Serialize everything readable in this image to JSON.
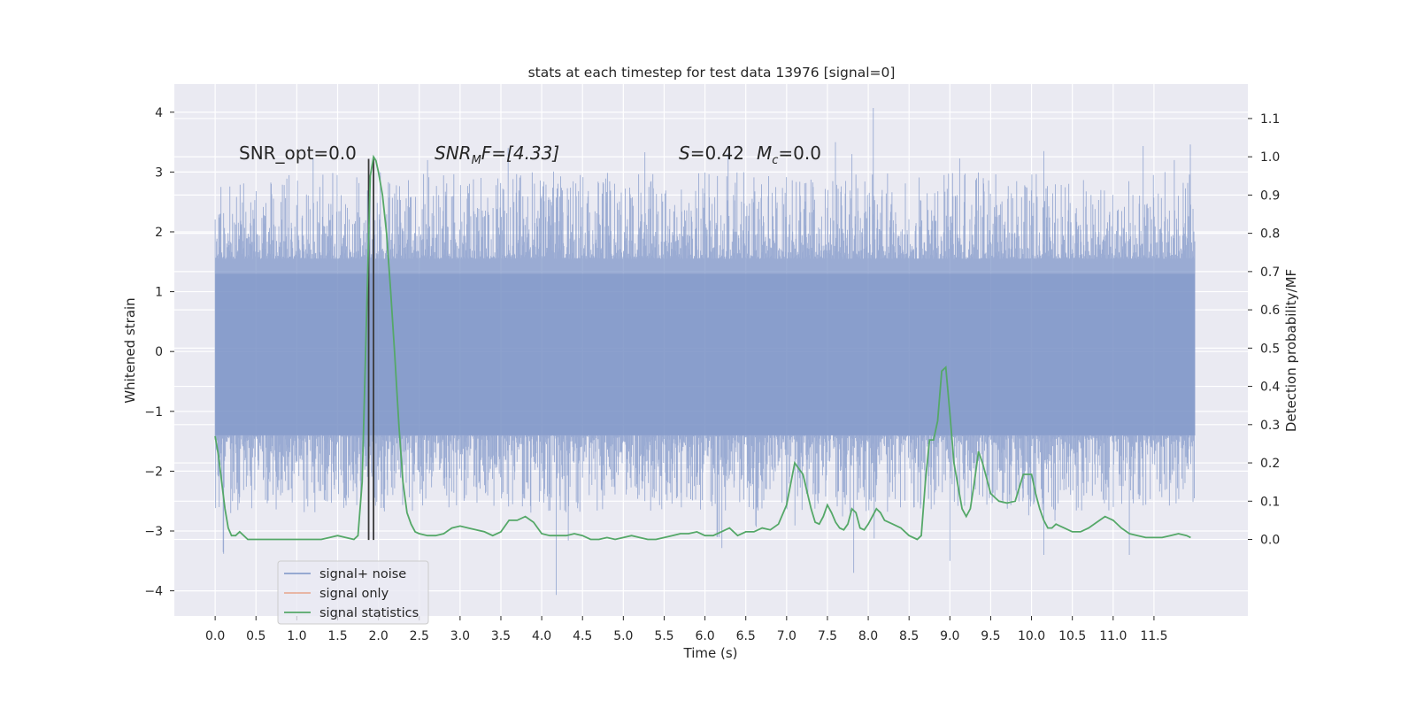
{
  "chart_data": {
    "type": "line",
    "title": "stats at each timestep for test data 13976 [signal=0]",
    "xlabel": "Time (s)",
    "ylabel_left": "Whitened strain",
    "ylabel_right": "Detection probability/MF",
    "xlim": [
      -0.5,
      12.65
    ],
    "ylim_left": [
      -4.42,
      4.47
    ],
    "ylim_right": [
      -0.2,
      1.19
    ],
    "x_ticks": [
      "0.0",
      "0.5",
      "1.0",
      "1.5",
      "2.0",
      "2.5",
      "3.0",
      "3.5",
      "4.0",
      "4.5",
      "5.0",
      "5.5",
      "6.0",
      "6.5",
      "7.0",
      "7.5",
      "8.0",
      "8.5",
      "9.0",
      "9.5",
      "10.0",
      "10.5",
      "11.0",
      "11.5"
    ],
    "y_left_ticks": [
      "4",
      "3",
      "2",
      "1",
      "0",
      "−1",
      "−2",
      "−3",
      "−4"
    ],
    "y_right_ticks": [
      "1.1",
      "1.0",
      "0.9",
      "0.8",
      "0.7",
      "0.6",
      "0.5",
      "0.4",
      "0.3",
      "0.2",
      "0.1",
      "0.0"
    ],
    "grid": true,
    "annotations": {
      "snr_opt": "SNR_opt=0.0",
      "snr_mf_base": "SNR",
      "snr_mf_sub": "M",
      "snr_mf_rest": "F=[4.33]",
      "s_var": "S",
      "s_val": "=0.42",
      "mc_var": "M",
      "mc_sub": "c",
      "mc_val": "=0.0"
    },
    "vlines": [
      1.88,
      1.94
    ],
    "vlines_range": [
      -3.15,
      3.22
    ],
    "legend": {
      "placement": "lower-left",
      "entries": [
        {
          "label": "signal+ noise",
          "color": "#7b93c6"
        },
        {
          "label": "signal only",
          "color": "#e8a58b"
        },
        {
          "label": "signal statistics",
          "color": "#55a868"
        }
      ]
    },
    "series": [
      {
        "name": "signal+ noise",
        "color": "#7b93c6",
        "x_range": [
          0.0,
          12.0
        ],
        "envelope_typical": [
          -1.5,
          1.7
        ],
        "extremes": [
          -4.07,
          4.07
        ],
        "peaks": [
          {
            "x": 8.06,
            "y": 4.07
          },
          {
            "x": 7.6,
            "y": 3.5
          },
          {
            "x": 7.8,
            "y": 3.3
          },
          {
            "x": 10.15,
            "y": 3.35
          },
          {
            "x": 11.75,
            "y": 3.2
          },
          {
            "x": 2.6,
            "y": 3.2
          },
          {
            "x": 4.18,
            "y": -4.07
          },
          {
            "x": 7.82,
            "y": -3.7
          },
          {
            "x": 9.0,
            "y": -3.5
          },
          {
            "x": 0.1,
            "y": -3.35
          },
          {
            "x": 11.2,
            "y": -3.4
          },
          {
            "x": 10.15,
            "y": -3.4
          },
          {
            "x": 6.15,
            "y": -3.1
          }
        ]
      },
      {
        "name": "signal statistics",
        "color": "#55a868",
        "x": [
          0.0,
          0.04,
          0.08,
          0.12,
          0.16,
          0.2,
          0.25,
          0.3,
          0.35,
          0.4,
          0.5,
          0.6,
          0.7,
          0.8,
          0.9,
          1.0,
          1.1,
          1.2,
          1.3,
          1.4,
          1.5,
          1.6,
          1.7,
          1.75,
          1.8,
          1.85,
          1.9,
          1.94,
          1.97,
          2.0,
          2.05,
          2.1,
          2.15,
          2.2,
          2.25,
          2.3,
          2.35,
          2.4,
          2.45,
          2.5,
          2.6,
          2.7,
          2.8,
          2.9,
          3.0,
          3.1,
          3.2,
          3.3,
          3.4,
          3.5,
          3.6,
          3.7,
          3.8,
          3.9,
          4.0,
          4.1,
          4.2,
          4.3,
          4.4,
          4.5,
          4.6,
          4.7,
          4.8,
          4.9,
          5.0,
          5.1,
          5.2,
          5.3,
          5.4,
          5.5,
          5.6,
          5.7,
          5.8,
          5.9,
          6.0,
          6.1,
          6.2,
          6.3,
          6.4,
          6.5,
          6.6,
          6.7,
          6.8,
          6.9,
          7.0,
          7.1,
          7.2,
          7.3,
          7.35,
          7.4,
          7.45,
          7.5,
          7.55,
          7.6,
          7.65,
          7.7,
          7.75,
          7.8,
          7.85,
          7.9,
          7.95,
          8.0,
          8.05,
          8.1,
          8.15,
          8.2,
          8.3,
          8.4,
          8.5,
          8.6,
          8.65,
          8.7,
          8.75,
          8.8,
          8.85,
          8.9,
          8.95,
          9.0,
          9.05,
          9.1,
          9.15,
          9.2,
          9.25,
          9.3,
          9.35,
          9.4,
          9.45,
          9.5,
          9.55,
          9.6,
          9.7,
          9.8,
          9.9,
          10.0,
          10.05,
          10.1,
          10.15,
          10.2,
          10.25,
          10.3,
          10.35,
          10.4,
          10.5,
          10.6,
          10.7,
          10.8,
          10.9,
          11.0,
          11.1,
          11.2,
          11.3,
          11.4,
          11.5,
          11.6,
          11.7,
          11.8,
          11.9,
          11.95
        ],
        "y": [
          0.27,
          0.22,
          0.15,
          0.08,
          0.03,
          0.01,
          0.01,
          0.02,
          0.01,
          0.0,
          0.0,
          0.0,
          0.0,
          0.0,
          0.0,
          0.0,
          0.0,
          0.0,
          0.0,
          0.005,
          0.01,
          0.005,
          0.0,
          0.01,
          0.15,
          0.55,
          0.95,
          1.0,
          0.99,
          0.96,
          0.9,
          0.8,
          0.65,
          0.48,
          0.3,
          0.15,
          0.07,
          0.04,
          0.02,
          0.015,
          0.01,
          0.01,
          0.015,
          0.03,
          0.035,
          0.03,
          0.025,
          0.02,
          0.01,
          0.02,
          0.05,
          0.05,
          0.06,
          0.045,
          0.015,
          0.01,
          0.01,
          0.01,
          0.015,
          0.01,
          0.0,
          0.0,
          0.005,
          0.0,
          0.005,
          0.01,
          0.005,
          0.0,
          0.0,
          0.005,
          0.01,
          0.015,
          0.015,
          0.02,
          0.01,
          0.01,
          0.02,
          0.03,
          0.01,
          0.02,
          0.02,
          0.03,
          0.025,
          0.04,
          0.09,
          0.2,
          0.17,
          0.08,
          0.045,
          0.04,
          0.06,
          0.09,
          0.07,
          0.045,
          0.03,
          0.025,
          0.04,
          0.08,
          0.07,
          0.03,
          0.025,
          0.04,
          0.06,
          0.08,
          0.07,
          0.05,
          0.04,
          0.03,
          0.01,
          0.0,
          0.01,
          0.15,
          0.26,
          0.26,
          0.31,
          0.44,
          0.45,
          0.33,
          0.2,
          0.14,
          0.08,
          0.06,
          0.08,
          0.15,
          0.23,
          0.2,
          0.16,
          0.12,
          0.11,
          0.1,
          0.095,
          0.1,
          0.17,
          0.17,
          0.12,
          0.08,
          0.05,
          0.03,
          0.03,
          0.04,
          0.035,
          0.03,
          0.02,
          0.02,
          0.03,
          0.045,
          0.06,
          0.05,
          0.03,
          0.015,
          0.01,
          0.005,
          0.005,
          0.005,
          0.01,
          0.015,
          0.01,
          0.005
        ]
      }
    ]
  }
}
